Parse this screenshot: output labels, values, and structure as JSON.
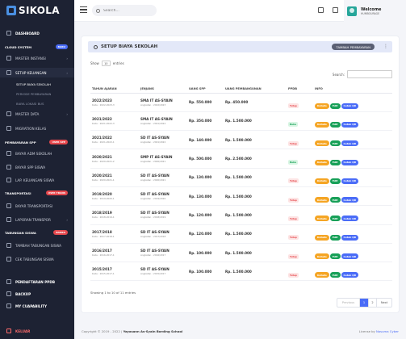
{
  "brand": "SIKOLA",
  "sidebar": {
    "items": [
      {
        "label": "DASHBOARD",
        "type": "bold"
      },
      {
        "label": "CLOUD SYSTEM",
        "type": "section",
        "badge": "BARU",
        "badge_color": "#4a6cf7"
      },
      {
        "label": "MASTER INSTANSI",
        "type": "item",
        "chev": true
      },
      {
        "label": "SETUP KEUANGAN",
        "type": "active-parent",
        "chev": true
      },
      {
        "label": "SETUP BIAYA SEKOLAH",
        "type": "sub-active"
      },
      {
        "label": "PERIODE PEMBAYARAN",
        "type": "sub"
      },
      {
        "label": "BIAYA LOKASI BUS",
        "type": "sub"
      },
      {
        "label": "MASTER DATA",
        "type": "item",
        "chev": true
      },
      {
        "label": "MIGRATION KELAS",
        "type": "item"
      },
      {
        "label": "PEMBAYARAN SPP",
        "type": "section",
        "badge": "USER SPP",
        "badge_color": "#e5484d"
      },
      {
        "label": "BAYAR ADM SEKOLAH",
        "type": "item"
      },
      {
        "label": "BAYAR SPP SISWA",
        "type": "item"
      },
      {
        "label": "LAP. KEUANGAN SISWA",
        "type": "item"
      },
      {
        "label": "TRANSPORTASI",
        "type": "section",
        "badge": "USER TRANS",
        "badge_color": "#e5484d"
      },
      {
        "label": "BAYAR TRANSPORTASI",
        "type": "item"
      },
      {
        "label": "LAPORAN TRANSPOR",
        "type": "item",
        "chev": true
      },
      {
        "label": "TABUNGAN SISWA",
        "type": "section",
        "badge": "BANKS",
        "badge_color": "#e5484d"
      },
      {
        "label": "TAMBAH TABUNGAN SISWA",
        "type": "item"
      },
      {
        "label": "CEK TABUNGAN SISWA",
        "type": "item"
      },
      {
        "label": "PENDAFTARAN PPDB",
        "type": "bold"
      },
      {
        "label": "BACKUP",
        "type": "bold"
      },
      {
        "label": "MY CUAPABILITY",
        "type": "bold"
      },
      {
        "label": "KELUAR",
        "type": "logout"
      }
    ]
  },
  "header": {
    "search_placeholder": "Search...",
    "welcome": "Welcome",
    "username": "HUMBOURAGE"
  },
  "card": {
    "title": "SETUP BIAYA SEKOLAH",
    "add_button": "TAMBAH PEMBAYARAN",
    "show_label": "Show",
    "show_value": "10",
    "entries_label": "entries",
    "search_label": "Search:",
    "columns": [
      "TAHUN AJARAN",
      "JENJANG",
      "UANG SPP",
      "UANG PEMBANGUNAN",
      "PPDB",
      "INFO"
    ],
    "rows": [
      {
        "year": "2022/2023",
        "kode": "Kode : 2022-2023-3",
        "jenjang": "SMA IT AS-SYAIN",
        "angkatan": "Angkatan : 2022/2023",
        "spp": "Rp. 550.000",
        "bangun": "Rp. 450.000",
        "ppdb": "Tutup",
        "open": false
      },
      {
        "year": "2021/2022",
        "kode": "Kode : 2021-2022-3",
        "jenjang": "SMA IT AS-SYAIN",
        "angkatan": "Angkatan : 2021/2022",
        "spp": "Rp. 350.000",
        "bangun": "Rp. 1.500.000",
        "ppdb": "Buka",
        "open": true
      },
      {
        "year": "2021/2022",
        "kode": "Kode : 2021-2022-1",
        "jenjang": "SD IT AS-SYAIN",
        "angkatan": "Angkatan : 2021/2022",
        "spp": "Rp. 140.000",
        "bangun": "Rp. 1.500.000",
        "ppdb": "Tutup",
        "open": false
      },
      {
        "year": "2020/2021",
        "kode": "Kode : 2020-2021-2",
        "jenjang": "SMP IT AS-SYAIN",
        "angkatan": "Angkatan : 2020/2021",
        "spp": "Rp. 500.000",
        "bangun": "Rp. 2.500.000",
        "ppdb": "Buka",
        "open": true
      },
      {
        "year": "2020/2021",
        "kode": "Kode : 2020-2021-1",
        "jenjang": "SD IT AS-SYAIN",
        "angkatan": "Angkatan : 2020/2021",
        "spp": "Rp. 130.000",
        "bangun": "Rp. 1.500.000",
        "ppdb": "Tutup",
        "open": false
      },
      {
        "year": "2019/2020",
        "kode": "Kode : 2019-2020-1",
        "jenjang": "SD IT AS-SYAIN",
        "angkatan": "Angkatan : 2019/2020",
        "spp": "Rp. 130.000",
        "bangun": "Rp. 1.500.000",
        "ppdb": "Tutup",
        "open": false
      },
      {
        "year": "2018/2019",
        "kode": "Kode : 2018-2019-1",
        "jenjang": "SD IT AS-SYAIN",
        "angkatan": "Angkatan : 2018/2019",
        "spp": "Rp. 120.000",
        "bangun": "Rp. 1.500.000",
        "ppdb": "Tutup",
        "open": false
      },
      {
        "year": "2017/2018",
        "kode": "Kode : 2017-2018-1",
        "jenjang": "SD IT AS-SYAIN",
        "angkatan": "Angkatan : 2017/2018",
        "spp": "Rp. 120.000",
        "bangun": "Rp. 1.500.000",
        "ppdb": "Tutup",
        "open": false
      },
      {
        "year": "2016/2017",
        "kode": "Kode : 2016-2017-1",
        "jenjang": "SD IT AS-SYAIN",
        "angkatan": "Angkatan : 2016/2017",
        "spp": "Rp. 100.000",
        "bangun": "Rp. 1.500.000",
        "ppdb": "Tutup",
        "open": false
      },
      {
        "year": "2015/2017",
        "kode": "Kode : 2015-2017-1",
        "jenjang": "SD IT AS-SYAIN",
        "angkatan": "Angkatan : 2015/2017",
        "spp": "Rp. 100.000",
        "bangun": "Rp. 1.500.000",
        "ppdb": "Tutup",
        "open": false
      }
    ],
    "actions": {
      "details": "Details",
      "edit": "Edit",
      "qr": "Cetak QR"
    },
    "showing": "Showing 1 to 10 of 11 entries",
    "pager": {
      "prev": "Previous",
      "pages": [
        "1",
        "2"
      ],
      "current": "1",
      "next": "Next"
    }
  },
  "footer": {
    "copyright": "Copyright © 2019 - 2022 |",
    "school": "Yayasann As-Syain Bording School",
    "license": "License by",
    "license_link": "Nosuma Cyber"
  }
}
